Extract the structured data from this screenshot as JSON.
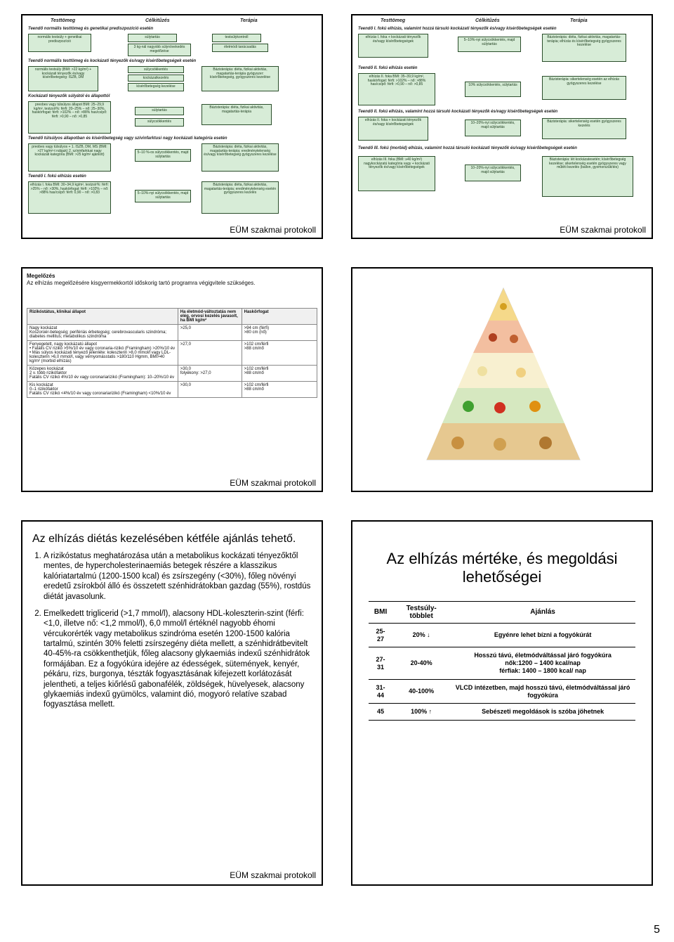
{
  "page_number": "5",
  "caption_text": "EÜM szakmai protokoll",
  "colors": {
    "box_bg": "#d7ecd7",
    "box_border": "#2a4d2a",
    "text": "#000000",
    "bg": "#ffffff"
  },
  "slide1": {
    "col_headers": [
      "Testtömeg",
      "Célkitűzés",
      "Terápia"
    ],
    "sections": [
      "Teendő normális testtömeg és genetikai prediszpozíció esetén",
      "Teendő normális testtömeg és kockázati tényezők és/vagy kísérőbetegségek esetén",
      "Kockázati tényezők súlyától és állapottól",
      "Teendő túlsúlyos állapotban és kísérőbetegség vagy szívinfarktusi nagy kockázati kategória esetén",
      "Teendő I. fokú elhízás esetén"
    ],
    "boxes": {
      "r1a": "normális testsúly + genetikai prediszpozíció",
      "r1b": "súlytartás",
      "r1c": "testsúlykontroll",
      "r1d": "3 kg-nál nagyobb súlynövekedés megelőzése",
      "r1e": "életmódi tanácsadás",
      "r2a": "normális testsúly (BMI: >22 kg/m²) + kockázati tényezők és/vagy kísérőbetegség: ISZB, DM",
      "r2b": "súlycsökkentés",
      "r2c": "kockázatkezelés",
      "r2d": "kísérőbetegség kezelése",
      "r2e": "Bázisterápia: diéta, fizikai aktivitás, magatartás-terápia gyógyszer: kísérőbetegség, gyógyszeres kezelése",
      "r3a": "preobes vagy túlsúlyos állapot BMI: 25–29,9 kg/m², testzsír%: férfi: 20–25% – nő: 25–30%, haskörfogat: férfi: >102% – nő: >88% has/csípő: férfi: >0,90 – nő: >0,85",
      "r3b": "súlytartás",
      "r3c": "súlycsökkentés",
      "r3d": "Bázisterápia: diéta, fizikai aktivitás, magatartás-terápia",
      "r4a": "preobes vagy túlsúlyos + 1. ISZB, DM, MS (BMI: >27 kg/m²-t nálguk) 2. szívinfarktusi nagy kockázati kategória (BMI: >25 kg/m² ajánlott)",
      "r4b": "5–10 %-os súlycsökkentés, majd súlytartás",
      "r4c": "Bázisterápia: diéta, fizikai aktivitás, magatartás-terápia; eredménytelenség és/vagy kísérőbetegség gyógyszeres kezelése",
      "r5a": "elhízás I. foka BMI: 30–34,9 kg/m², testzsír%: férfi: >25% – nő: >30%, haskörfogat: férfi: >102% – nő: >88% has/csípő: férfi: 0,90 – nő: >0,83",
      "r5b": "5–10%-nyi súlycsökkentés, majd súlytartás",
      "r5c": "Bázisterápia: diéta, fizikai aktivitás, magatartás-terápia; eredménytelenség esetén gyógyszeres kezelés"
    }
  },
  "slide2": {
    "col_headers": [
      "Testtömeg",
      "Célkitűzés",
      "Terápia"
    ],
    "sections": [
      "Teendő I. fokú elhízás, valamint hozzá társuló kockázati tényezők és/vagy kísérőbetegségek esetén",
      "Teendő II. fokú elhízás esetén",
      "Teendő II. fokú elhízás, valamint hozzá társuló kockázati tényezők és/vagy kísérőbetegségek esetén",
      "Teendő III. fokú (morbid) elhízás, valamint hozzá társuló kockázati tényezők és/vagy kísérőbetegségek esetén"
    ],
    "boxes": {
      "r1a": "elhízás I. foka + kockázati tényezők és/vagy kísérőbetegségek",
      "r1b": "5–10%-nyi súlycsökkentés, majd súlytartás",
      "r1c": "Bázisterápia: diéta, fizikai aktivitás, magatartás-terápia; elhízás és kísérőbetegség gyógyszeres kezelése",
      "r2a": "elhízás II. foka BMI: 35–39,9 kg/m², haskörfogat: férfi: >102% – nő: >88% has/csípő: férfi: >0,90 – nő: >0,85",
      "r2b": "10% súlycsökkentés, súlytartás",
      "r2c": "Bázisterápia: sikertelenség esetén az elhízás gyógyszeres kezelése",
      "r3a": "elhízás II. foka + kockázati tényezők és/vagy kísérőbetegségek",
      "r3b": "10–20%-nyi súlycsökkentés, majd súlytartás",
      "r3c": "Bázisterápia: sikertelenség esetén gyógyszeres kezelés",
      "r4a": "elhízás III. foka (BMI: ≥40 kg/m²) nagykockázatú kategória vagy + kockázati tényezők és/vagy kísérőbetegségek",
      "r4b": "10–20%-nyi súlycsökkentés, majd súlytartás",
      "r4c": "Bázisterápia: lét kockázatesetén; kísérőbetegség kezelése; sikertelenség esetén gyógyszeres vagy műtéti kezelés (ballon, gyomorszűkítés)"
    }
  },
  "slide3": {
    "header_title": "Megelőzés",
    "header_body": "Az elhízás megelőzésére kisgyermekkortól időskorig tartó programra végigvitele szükséges.",
    "table_head_left": "Rizikóstátus, klinikai állapot",
    "table_head_mid": "Ha életmód-változtatás nem elég, orvosi kezelés javasolt, ha BMI kg/m²",
    "table_head_right": "Haskörfogat",
    "rows": [
      {
        "risk": "Nagy kockázat\nKoszorúér-betegség; perifériás érbetegség; cerebrovascularis szindróma; diabetes mellitus; metabolikus szindróma",
        "bmi": ">25,0",
        "waist": ">94 cm (férfi)\n>80 cm (nő)"
      },
      {
        "risk": "Fenyegetett, nagy kockázatú állapot\n• Fatális CV rizikó >5%/10 év vagy coronaria-rizikó (Framingham) >20%/10 év\n• Más súlyos kockázati tényező jelenléte: koleszterin >8,0 mmol/l vagy LDL-koleszterin >6,0 mmol/l, vagy vérnyomásstatis >180/110 Hgmm, BMI>40 kg/m² (morbid elhízás)",
        "bmi": ">27,0",
        "waist": ">102 cm/férfi\n>88 cm/nő"
      },
      {
        "risk": "Közepes kockázat\n2 v. több rizikófaktor\nFatális CV rizikó 4%/10 év vagy coronariarizikó (Framingham): 10–20%/10 év",
        "bmi": ">30,0\nfolyékony: >27,0",
        "waist": ">102 cm/férfi\n>88 cm/nő"
      },
      {
        "risk": "Kis kockázat\n0–1 rizikófaktor\nFatális CV rizikó <4%/10 év vagy coronariarizikó (Framingham) <10%/10 év",
        "bmi": ">30,0",
        "waist": ">102 cm/férfi\n>88 cm/nő"
      }
    ]
  },
  "slide5": {
    "title": "Az elhízás diétás kezelésében kétféle ajánlás tehető.",
    "items": [
      "A rizikóstatus meghatározása után a metabolikus kockázati tényezőktől mentes, de hypercholesterinaemiás betegek részére a klasszikus kalóriatartalmú (1200-1500 kcal) és zsírszegény (<30%), főleg növényi eredetű zsírokból álló és összetett szénhidrátokban gazdag (55%), rostdús diétát javasolunk.",
      "Emelkedett triglicerid (>1,7 mmol/l), alacsony HDL-koleszterin-szint (férfi: <1,0, illetve nő: <1,2 mmol/l), 6,0 mmol/l értéknél nagyobb éhomi vércukorérték vagy metabolikus szindróma esetén 1200-1500 kalória tartalmú, szintén 30% feletti zsírszegény diéta mellett, a szénhidrátbevitelt 40-45%-ra csökkenthetjük, főleg alacsony glykaemiás indexű szénhidrátok formájában. Ez a fogyókúra idejére az édességek, sütemények, kenyér, pékáru, rizs, burgonya, tészták fogyasztásának kifejezett korlátozását jelentheti, a teljes kiőrlésű gabonafélék, zöldségek, hüvelyesek, alacsony glykaemiás indexű gyümölcs, valamint dió, mogyoró relatíve szabad fogyasztása mellett."
    ]
  },
  "slide6": {
    "title": "Az elhízás mértéke, és megoldási lehetőségei",
    "headers": [
      "BMI",
      "Testsúly-többlet",
      "Ajánlás"
    ],
    "rows": [
      {
        "bmi": "25-27",
        "surplus": "20%",
        "arrow": "down",
        "rec": "Egyénre lehet bízni a fogyókúrát"
      },
      {
        "bmi": "27-31",
        "surplus": "20-40%",
        "arrow": "",
        "rec": "Hosszú távú, életmódváltással járó fogyókúra\nnők:1200 – 1400 kcal/nap\nférfiak: 1400 – 1800 kcal/ nap"
      },
      {
        "bmi": "31-44",
        "surplus": "40-100%",
        "arrow": "",
        "rec": "VLCD intézetben, majd hosszú távú, életmódváltással járó fogyókúra"
      },
      {
        "bmi": "45",
        "surplus": "100%",
        "arrow": "up",
        "rec": "Sebészeti megoldások is szóba jöhetnek"
      }
    ]
  }
}
